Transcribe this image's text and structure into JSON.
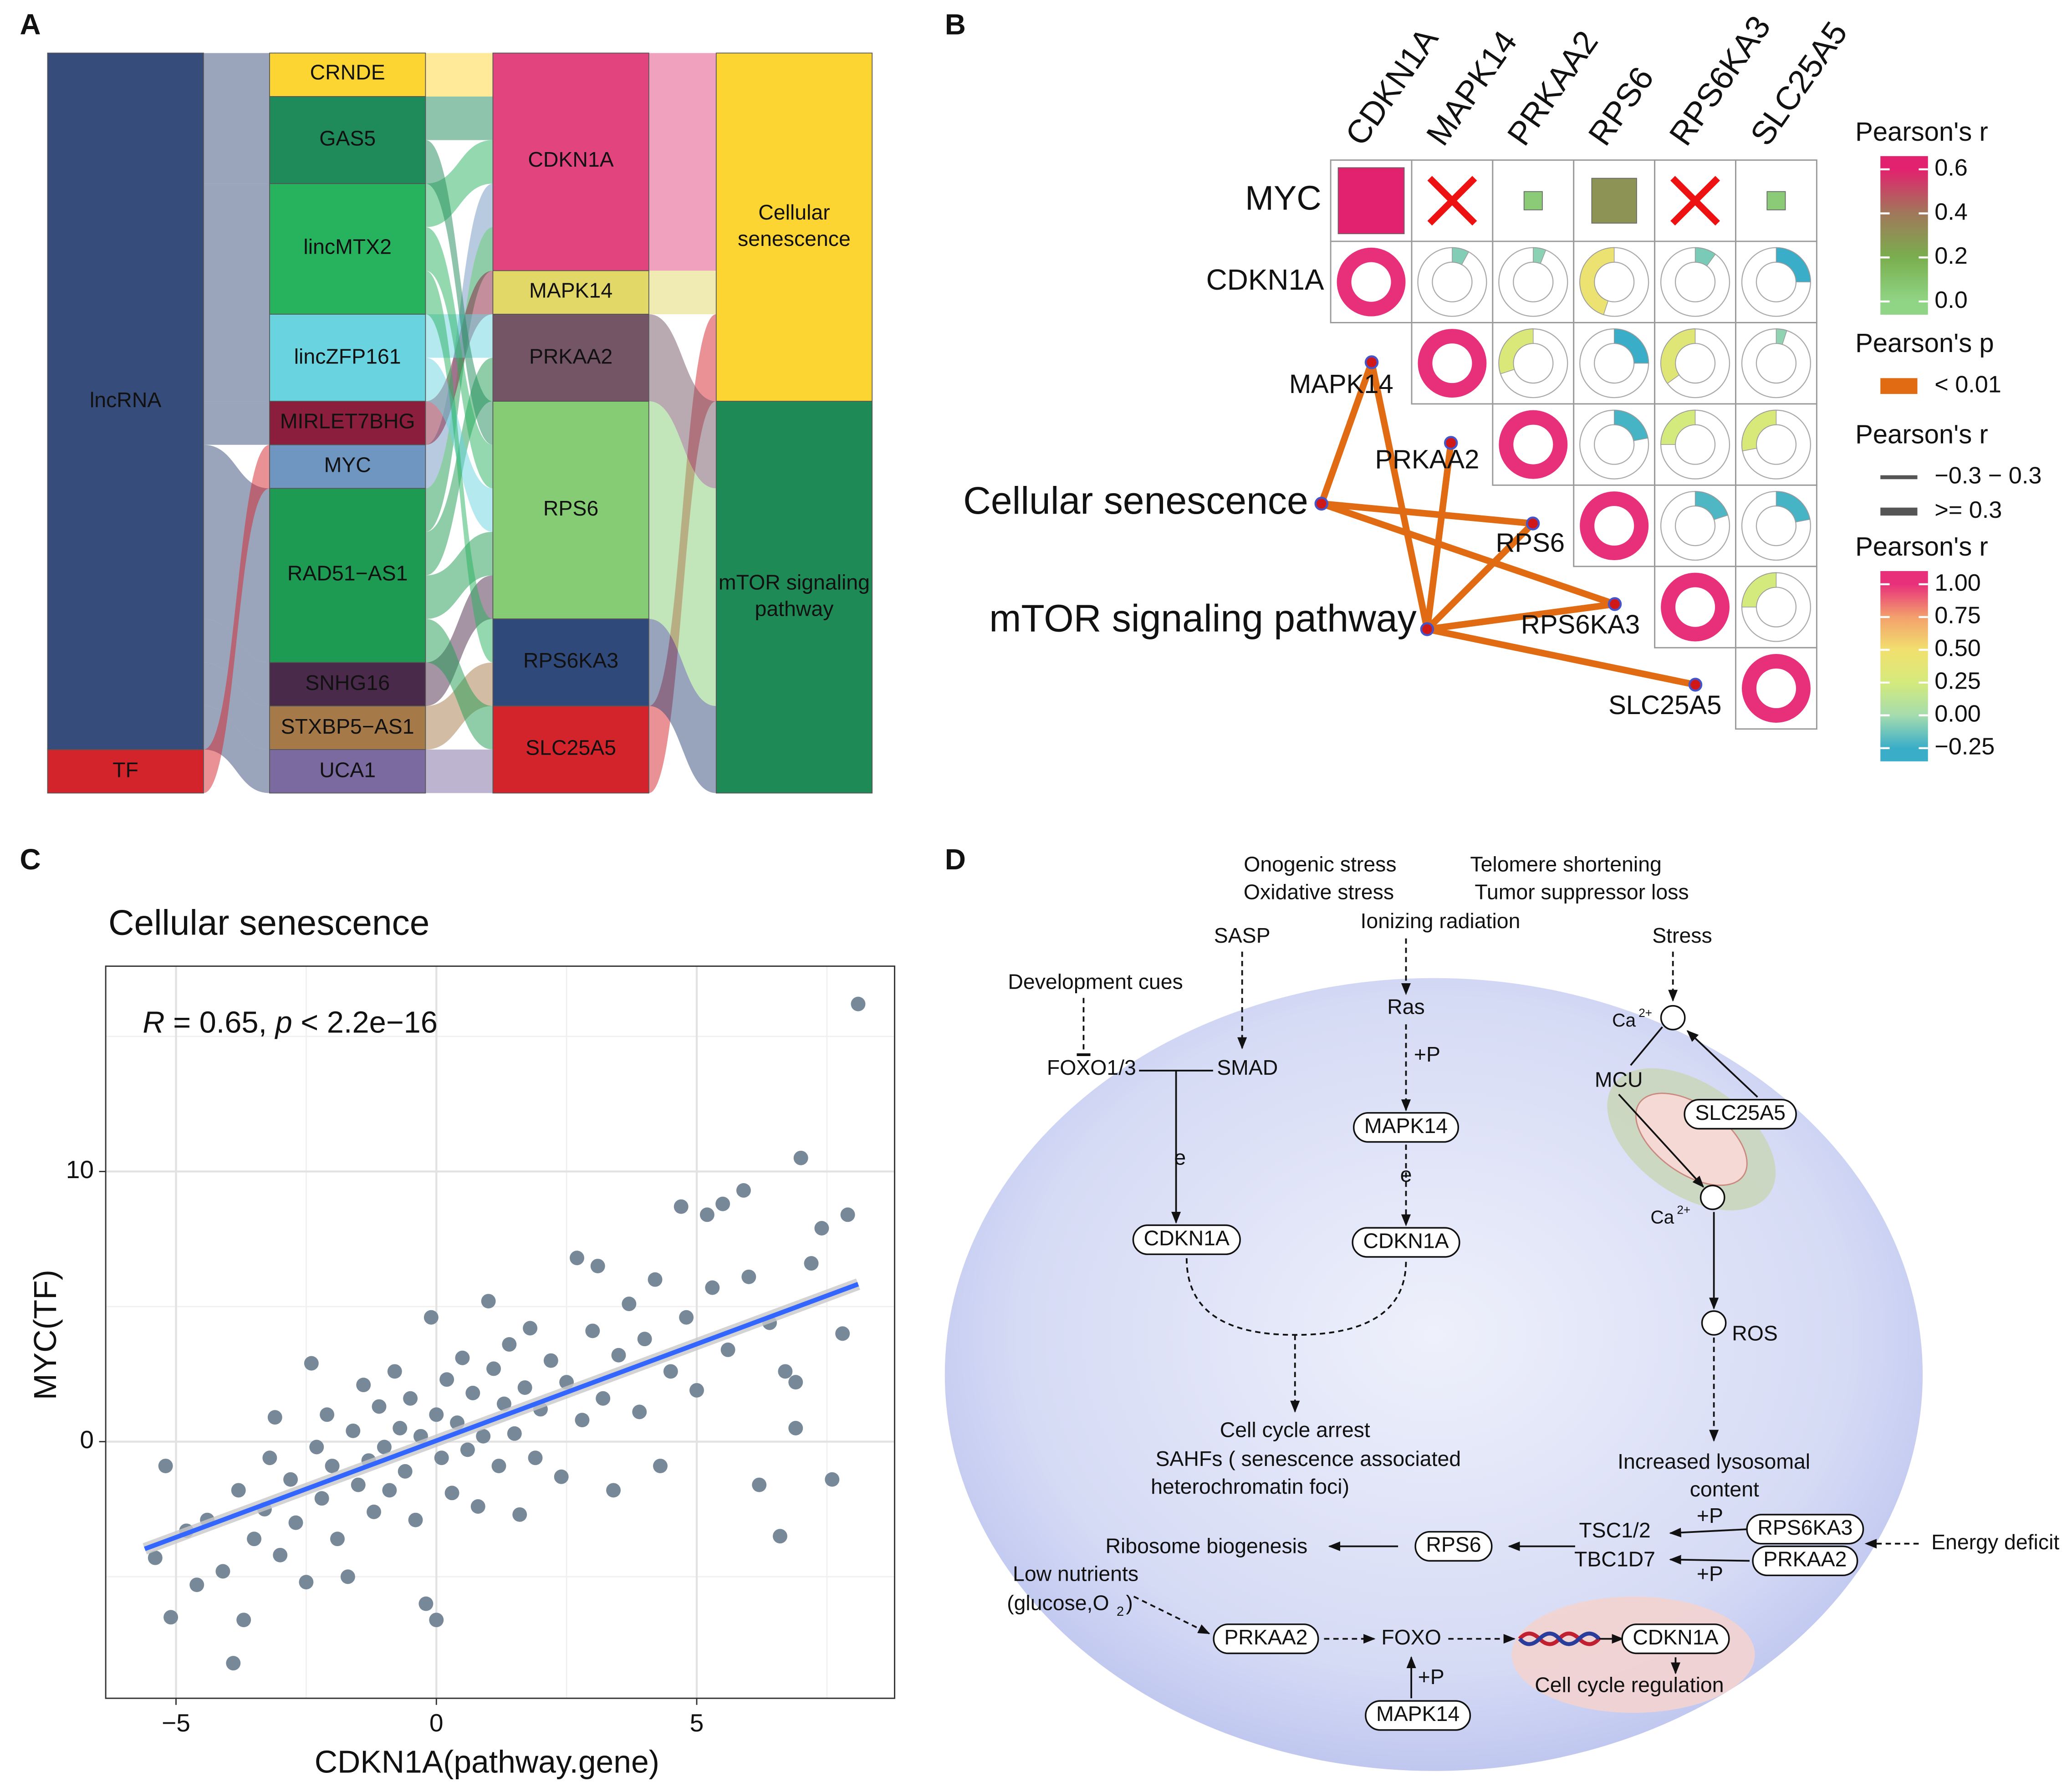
{
  "panel_labels": [
    "A",
    "B",
    "C",
    "D"
  ],
  "chart_data": [
    {
      "type": "sankey",
      "columns": [
        [
          {
            "name": "lncRNA",
            "value": 16,
            "color": "#364c7a"
          },
          {
            "name": "TF",
            "value": 1,
            "color": "#d3242c"
          }
        ],
        [
          {
            "name": "CRNDE",
            "value": 1,
            "color": "#fdd533"
          },
          {
            "name": "GAS5",
            "value": 2,
            "color": "#1f8a5a"
          },
          {
            "name": "lincMTX2",
            "value": 3,
            "color": "#27b25e"
          },
          {
            "name": "lincZFP161",
            "value": 2,
            "color": "#6ad3e0"
          },
          {
            "name": "MIRLET7BHG",
            "value": 1,
            "color": "#8a1e3c"
          },
          {
            "name": "MYC",
            "value": 1,
            "color": "#6f96c0"
          },
          {
            "name": "RAD51−AS1",
            "value": 4,
            "color": "#1d9b52"
          },
          {
            "name": "SNHG16",
            "value": 1,
            "color": "#4a2a4a"
          },
          {
            "name": "STXBP5−AS1",
            "value": 1,
            "color": "#a67a48"
          },
          {
            "name": "UCA1",
            "value": 1,
            "color": "#7b6aa0"
          }
        ],
        [
          {
            "name": "CDKN1A",
            "value": 5,
            "color": "#e2447e"
          },
          {
            "name": "MAPK14",
            "value": 1,
            "color": "#e2d868"
          },
          {
            "name": "PRKAA2",
            "value": 2,
            "color": "#735566"
          },
          {
            "name": "RPS6",
            "value": 5,
            "color": "#86cc74"
          },
          {
            "name": "RPS6KA3",
            "value": 2,
            "color": "#2f4a7a"
          },
          {
            "name": "SLC25A5",
            "value": 2,
            "color": "#d3242c"
          }
        ],
        [
          {
            "name": "Cellular senescence",
            "value": 8,
            "color": "#fdd533"
          },
          {
            "name": "mTOR signaling pathway",
            "value": 9,
            "color": "#1e8a55"
          }
        ]
      ],
      "links": [
        {
          "source": "lncRNA",
          "target": "CRNDE",
          "value": 1
        },
        {
          "source": "lncRNA",
          "target": "GAS5",
          "value": 2
        },
        {
          "source": "lncRNA",
          "target": "lincMTX2",
          "value": 3
        },
        {
          "source": "lncRNA",
          "target": "lincZFP161",
          "value": 2
        },
        {
          "source": "lncRNA",
          "target": "MIRLET7BHG",
          "value": 1
        },
        {
          "source": "lncRNA",
          "target": "RAD51−AS1",
          "value": 4
        },
        {
          "source": "lncRNA",
          "target": "SNHG16",
          "value": 1
        },
        {
          "source": "lncRNA",
          "target": "STXBP5−AS1",
          "value": 1
        },
        {
          "source": "lncRNA",
          "target": "UCA1",
          "value": 1
        },
        {
          "source": "TF",
          "target": "MYC",
          "value": 1
        },
        {
          "source": "CRNDE",
          "target": "CDKN1A",
          "value": 1
        },
        {
          "source": "GAS5",
          "target": "CDKN1A",
          "value": 1
        },
        {
          "source": "lincMTX2",
          "target": "CDKN1A",
          "value": 1
        },
        {
          "source": "MYC",
          "target": "CDKN1A",
          "value": 1
        },
        {
          "source": "RAD51−AS1",
          "target": "CDKN1A",
          "value": 1
        },
        {
          "source": "MIRLET7BHG",
          "target": "MAPK14",
          "value": 1
        },
        {
          "source": "lincZFP161",
          "target": "PRKAA2",
          "value": 1
        },
        {
          "source": "RAD51−AS1",
          "target": "PRKAA2",
          "value": 1
        },
        {
          "source": "GAS5",
          "target": "RPS6",
          "value": 1
        },
        {
          "source": "lincMTX2",
          "target": "RPS6",
          "value": 1
        },
        {
          "source": "lincZFP161",
          "target": "RPS6",
          "value": 1
        },
        {
          "source": "RAD51−AS1",
          "target": "RPS6",
          "value": 1
        },
        {
          "source": "SNHG16",
          "target": "RPS6",
          "value": 1
        },
        {
          "source": "lincMTX2",
          "target": "RPS6KA3",
          "value": 1
        },
        {
          "source": "STXBP5−AS1",
          "target": "RPS6KA3",
          "value": 1
        },
        {
          "source": "RAD51−AS1",
          "target": "SLC25A5",
          "value": 1
        },
        {
          "source": "UCA1",
          "target": "SLC25A5",
          "value": 1
        },
        {
          "source": "CDKN1A",
          "target": "Cellular senescence",
          "value": 5
        },
        {
          "source": "MAPK14",
          "target": "Cellular senescence",
          "value": 1
        },
        {
          "source": "SLC25A5",
          "target": "Cellular senescence",
          "value": 2
        },
        {
          "source": "PRKAA2",
          "target": "mTOR signaling pathway",
          "value": 2
        },
        {
          "source": "RPS6",
          "target": "mTOR signaling pathway",
          "value": 5
        },
        {
          "source": "RPS6KA3",
          "target": "mTOR signaling pathway",
          "value": 2
        }
      ]
    },
    {
      "type": "correlation-network",
      "genes": [
        "CDKN1A",
        "MAPK14",
        "PRKAA2",
        "RPS6",
        "RPS6KA3",
        "SLC25A5"
      ],
      "tf": "MYC",
      "tf_r": [
        0.65,
        0.02,
        0.05,
        0.3,
        0.02,
        0.05
      ],
      "tf_significant": [
        true,
        false,
        true,
        true,
        false,
        true
      ],
      "r": [
        [
          1,
          -0.08,
          -0.06,
          0.45,
          -0.1,
          -0.25
        ],
        [
          null,
          1,
          0.3,
          -0.25,
          0.35,
          -0.05
        ],
        [
          null,
          null,
          1,
          -0.22,
          0.25,
          0.28
        ],
        [
          null,
          null,
          null,
          1,
          -0.2,
          -0.22
        ],
        [
          null,
          null,
          null,
          null,
          1,
          0.25
        ],
        [
          null,
          null,
          null,
          null,
          null,
          1
        ]
      ],
      "pathways": [
        "Cellular senescence",
        "mTOR signaling pathway"
      ],
      "edges": [
        [
          "Cellular senescence",
          "MAPK14"
        ],
        [
          "Cellular senescence",
          "RPS6"
        ],
        [
          "Cellular senescence",
          "RPS6KA3"
        ],
        [
          "mTOR signaling pathway",
          "MAPK14"
        ],
        [
          "mTOR signaling pathway",
          "PRKAA2"
        ],
        [
          "mTOR signaling pathway",
          "RPS6"
        ],
        [
          "mTOR signaling pathway",
          "RPS6KA3"
        ],
        [
          "mTOR signaling pathway",
          "SLC25A5"
        ]
      ],
      "edge_color": "#e06b12",
      "tf_legend": {
        "title": "Pearson's r",
        "ticks": [
          0.6,
          0.4,
          0.2,
          {
            "value": 0,
            "label": "0.0"
          }
        ],
        "colors": [
          "#e2226e",
          "#a0785a",
          "#7aae4e",
          "#90d585"
        ]
      },
      "p_legend": {
        "title": "Pearson's p",
        "label": "< 0.01"
      },
      "edge_legend": {
        "title": "Pearson's r",
        "labels": [
          "−0.3 − 0.3",
          ">= 0.3"
        ]
      },
      "r_legend": {
        "title": "Pearson's r",
        "ticks": [
          {
            "value": 1,
            "label": "1.00"
          },
          0.75,
          {
            "value": 0.5,
            "label": "0.50"
          },
          0.25,
          {
            "value": 0,
            "label": "0.00"
          },
          {
            "value": -0.25,
            "label": "−0.25"
          }
        ],
        "colors": [
          "#e8307a",
          "#f3a06c",
          "#f2e06e",
          "#d4ea7c",
          "#a5dcae",
          "#3aaec8"
        ]
      }
    },
    {
      "type": "scatter",
      "title": "Cellular senescence",
      "annotation": [
        "R",
        " = 0.65, ",
        "p",
        " < 2.2e−16"
      ],
      "x_label": "CDKN1A(pathway.gene)",
      "y_label": "MYC(TF)",
      "xlim": [
        -6.35,
        8.8
      ],
      "ylim": [
        -9.5,
        17.6
      ],
      "xticks": [
        {
          "value": -5,
          "label": "−5"
        },
        0,
        5
      ],
      "yticks": [
        0,
        10
      ],
      "grid": true,
      "color": "#778899",
      "fit": {
        "x": [
          -5.6,
          8.1
        ],
        "y": [
          -3.97,
          5.83
        ],
        "color": "#3366ff"
      },
      "x": [
        -5.2,
        -5.4,
        -5.1,
        -4.8,
        -4.6,
        -4.4,
        -4.1,
        -3.9,
        -3.7,
        -3.8,
        -3.5,
        -3.3,
        -3.2,
        -3.1,
        -3.0,
        -2.8,
        -2.7,
        -2.5,
        -2.4,
        -2.3,
        -2.2,
        -2.1,
        -2.0,
        -1.9,
        -1.7,
        -1.6,
        -1.5,
        -1.4,
        -1.3,
        -1.2,
        -1.1,
        -1.0,
        -0.9,
        -0.8,
        -0.7,
        -0.6,
        -0.5,
        -0.4,
        -0.3,
        -0.2,
        0.0,
        -0.1,
        0.0,
        0.1,
        0.2,
        0.3,
        0.4,
        0.5,
        0.6,
        0.7,
        0.8,
        0.9,
        1.0,
        1.1,
        1.2,
        1.3,
        1.4,
        1.5,
        1.6,
        1.7,
        1.8,
        1.9,
        2.0,
        2.2,
        2.4,
        2.5,
        2.7,
        2.8,
        3.0,
        3.1,
        3.2,
        3.4,
        3.5,
        3.7,
        3.9,
        4.0,
        4.2,
        4.3,
        4.5,
        4.7,
        4.8,
        5.0,
        5.2,
        5.3,
        5.5,
        5.6,
        5.9,
        6.0,
        6.2,
        6.4,
        6.6,
        6.7,
        6.9,
        6.9,
        7.0,
        7.2,
        7.4,
        7.6,
        7.8,
        7.9,
        8.1
      ],
      "y": [
        -0.9,
        -4.3,
        -6.5,
        -3.3,
        -5.3,
        -2.9,
        -4.8,
        -8.2,
        -6.6,
        -1.8,
        -3.6,
        -2.5,
        -0.6,
        0.9,
        -4.2,
        -1.4,
        -3.0,
        -5.2,
        2.9,
        -0.2,
        -2.1,
        1.0,
        -0.9,
        -3.6,
        -5.0,
        0.4,
        -1.6,
        2.1,
        -0.7,
        -2.6,
        1.3,
        -0.2,
        -1.8,
        2.6,
        0.5,
        -1.1,
        1.6,
        -2.9,
        0.2,
        -6.0,
        -6.6,
        4.6,
        1.0,
        -0.6,
        2.3,
        -1.9,
        0.7,
        3.1,
        -0.3,
        1.8,
        -2.4,
        0.2,
        5.2,
        2.7,
        -0.9,
        1.4,
        3.6,
        0.3,
        -2.7,
        2.0,
        4.2,
        -0.6,
        1.2,
        3.0,
        -1.3,
        2.2,
        6.8,
        0.8,
        4.1,
        6.5,
        1.6,
        -1.8,
        3.2,
        5.1,
        1.1,
        3.8,
        6.0,
        -0.9,
        2.6,
        8.7,
        4.6,
        1.9,
        8.4,
        5.7,
        8.8,
        3.4,
        9.3,
        6.1,
        -1.6,
        4.4,
        -3.5,
        2.6,
        0.5,
        2.2,
        10.5,
        6.6,
        7.9,
        -1.4,
        4.0,
        8.4,
        16.2
      ]
    }
  ],
  "pathway": {
    "labels": [
      "Onogenic stress",
      "Oxidative stress",
      "Telomere shortening",
      "Tumor suppressor loss",
      "Ionizing radiation",
      "SASP",
      "Stress",
      "Development cues",
      "Ras",
      "FOXO1/3",
      "SMAD",
      "+P",
      "e",
      "e",
      "MCU",
      "Ca",
      "2+",
      "Ca",
      "2+",
      "ROS",
      "Cell cycle arrest",
      "SAHFs ( senescence associated",
      "heterochromatin foci)",
      "Increased lysosomal",
      "content",
      "TSC1/2",
      "TBC1D7",
      "+P",
      "+P",
      "Energy deficit",
      "Ribosome biogenesis",
      "Low nutrients",
      "(glucose,O",
      "2",
      ")",
      "FOXO",
      "+P",
      "Cell cycle regulation"
    ],
    "genes": [
      "MAPK14",
      "SLC25A5",
      "CDKN1A",
      "CDKN1A",
      "RPS6",
      "RPS6KA3",
      "PRKAA2",
      "PRKAA2",
      "MAPK14",
      "CDKN1A"
    ]
  }
}
